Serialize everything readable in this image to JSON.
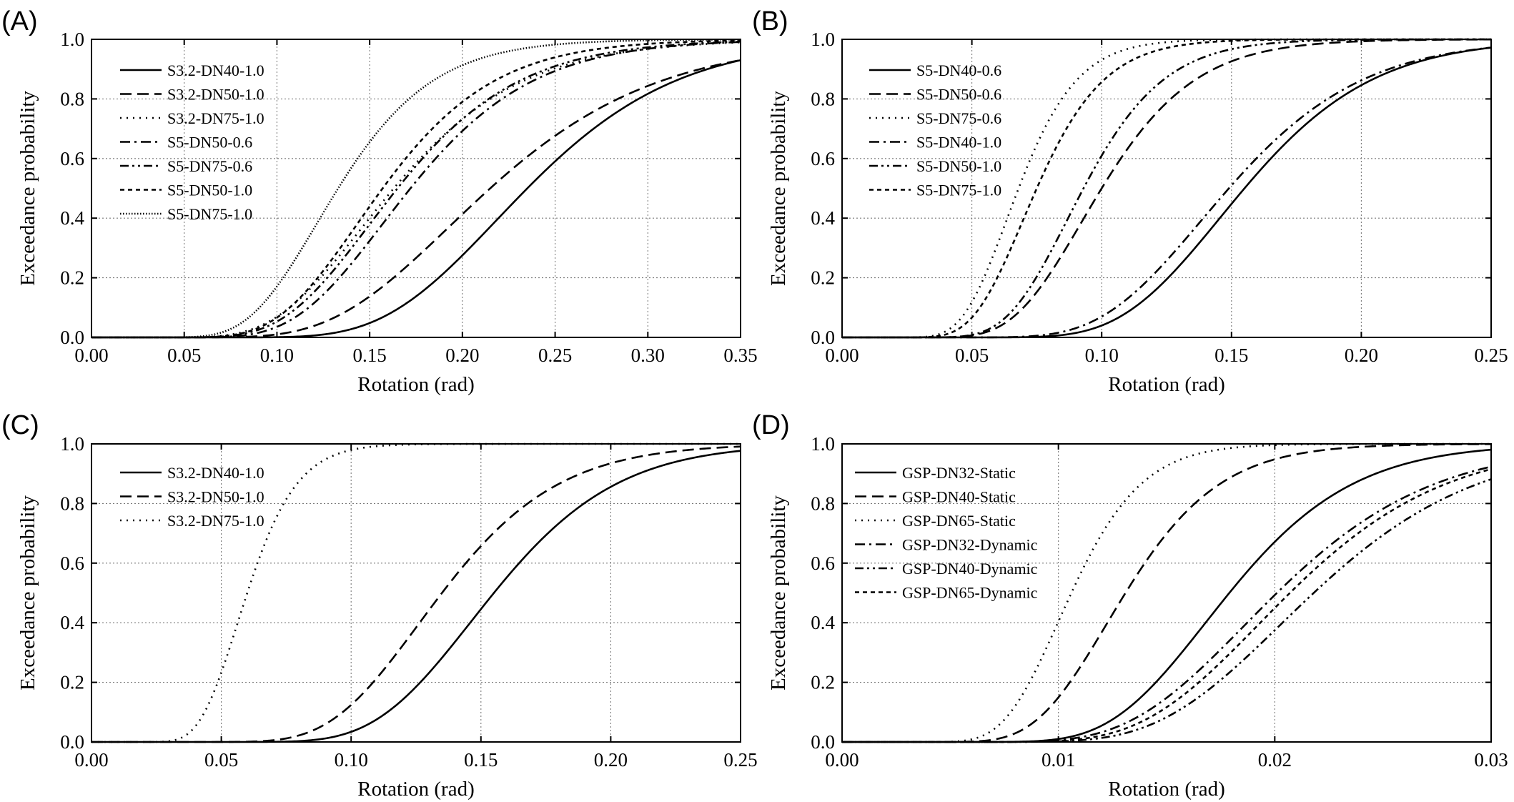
{
  "chart_data": [
    {
      "panel": "(A)",
      "type": "line",
      "xlabel": "Rotation (rad)",
      "ylabel": "Exceedance probability",
      "xlim": [
        0,
        0.35
      ],
      "ylim": [
        0,
        1.0
      ],
      "xticks": [
        "0.00",
        "0.05",
        "0.10",
        "0.15",
        "0.20",
        "0.25",
        "0.30",
        "0.35"
      ],
      "yticks": [
        "0.0",
        "0.2",
        "0.4",
        "0.6",
        "0.8",
        "1.0"
      ],
      "grid": true,
      "legend_position": "upper-left",
      "series": [
        {
          "name": "S3.2-DN40-1.0",
          "dash": "solid",
          "median": 0.235,
          "beta": 0.27
        },
        {
          "name": "S3.2-DN50-1.0",
          "dash": "dash",
          "median": 0.215,
          "beta": 0.33
        },
        {
          "name": "S3.2-DN75-1.0",
          "dash": "dot",
          "median": 0.163,
          "beta": 0.33
        },
        {
          "name": "S5-DN50-0.6",
          "dash": "dashdot",
          "median": 0.172,
          "beta": 0.3
        },
        {
          "name": "S5-DN75-0.6",
          "dash": "dashdotdot",
          "median": 0.165,
          "beta": 0.31
        },
        {
          "name": "S5-DN50-1.0",
          "dash": "shortdash",
          "median": 0.157,
          "beta": 0.3
        },
        {
          "name": "S5-DN75-1.0",
          "dash": "densedot",
          "median": 0.133,
          "beta": 0.3
        }
      ]
    },
    {
      "panel": "(B)",
      "type": "line",
      "xlabel": "Rotation (rad)",
      "ylabel": "Exceedance probability",
      "xlim": [
        0,
        0.25
      ],
      "ylim": [
        0,
        1.0
      ],
      "xticks": [
        "0.00",
        "0.05",
        "0.10",
        "0.15",
        "0.20",
        "0.25"
      ],
      "yticks": [
        "0.0",
        "0.2",
        "0.4",
        "0.6",
        "0.8",
        "1.0"
      ],
      "grid": true,
      "legend_position": "upper-left",
      "series": [
        {
          "name": "S5-DN40-0.6",
          "dash": "solid",
          "median": 0.155,
          "beta": 0.25
        },
        {
          "name": "S5-DN50-0.6",
          "dash": "dash",
          "median": 0.1,
          "beta": 0.28
        },
        {
          "name": "S5-DN75-0.6",
          "dash": "dot",
          "median": 0.068,
          "beta": 0.26
        },
        {
          "name": "S5-DN40-1.0",
          "dash": "dashdot",
          "median": 0.149,
          "beta": 0.27
        },
        {
          "name": "S5-DN50-1.0",
          "dash": "dashdotdot",
          "median": 0.093,
          "beta": 0.26
        },
        {
          "name": "S5-DN75-1.0",
          "dash": "shortdash",
          "median": 0.075,
          "beta": 0.27
        }
      ]
    },
    {
      "panel": "(C)",
      "type": "line",
      "xlabel": "Rotation (rad)",
      "ylabel": "Exceedance probability",
      "xlim": [
        0,
        0.25
      ],
      "ylim": [
        0,
        1.0
      ],
      "xticks": [
        "0.00",
        "0.05",
        "0.10",
        "0.15",
        "0.20",
        "0.25"
      ],
      "yticks": [
        "0.0",
        "0.2",
        "0.4",
        "0.6",
        "0.8",
        "1.0"
      ],
      "grid": true,
      "legend_position": "upper-left",
      "series": [
        {
          "name": "S3.2-DN40-1.0",
          "dash": "solid",
          "median": 0.155,
          "beta": 0.24
        },
        {
          "name": "S3.2-DN50-1.0",
          "dash": "dash",
          "median": 0.135,
          "beta": 0.26
        },
        {
          "name": "S3.2-DN75-1.0",
          "dash": "dot",
          "median": 0.06,
          "beta": 0.25
        }
      ]
    },
    {
      "panel": "(D)",
      "type": "line",
      "xlabel": "Rotation (rad)",
      "ylabel": "Exceedance probability",
      "xlim": [
        0,
        0.03
      ],
      "ylim": [
        0,
        1.0
      ],
      "xticks": [
        "0.00",
        "0.01",
        "0.02",
        "0.03"
      ],
      "yticks": [
        "0.0",
        "0.2",
        "0.4",
        "0.6",
        "0.8",
        "1.0"
      ],
      "grid": true,
      "legend_position": "upper-left",
      "series": [
        {
          "name": "GSP-DN32-Static",
          "dash": "solid",
          "median": 0.0179,
          "beta": 0.25
        },
        {
          "name": "GSP-DN40-Static",
          "dash": "dash",
          "median": 0.0131,
          "beta": 0.26
        },
        {
          "name": "GSP-DN65-Static",
          "dash": "dot",
          "median": 0.0106,
          "beta": 0.24
        },
        {
          "name": "GSP-DN32-Dynamic",
          "dash": "dashdot",
          "median": 0.0201,
          "beta": 0.28
        },
        {
          "name": "GSP-DN40-Dynamic",
          "dash": "dashdotdot",
          "median": 0.0218,
          "beta": 0.27
        },
        {
          "name": "GSP-DN65-Dynamic",
          "dash": "shortdash",
          "median": 0.0207,
          "beta": 0.27
        }
      ]
    }
  ]
}
